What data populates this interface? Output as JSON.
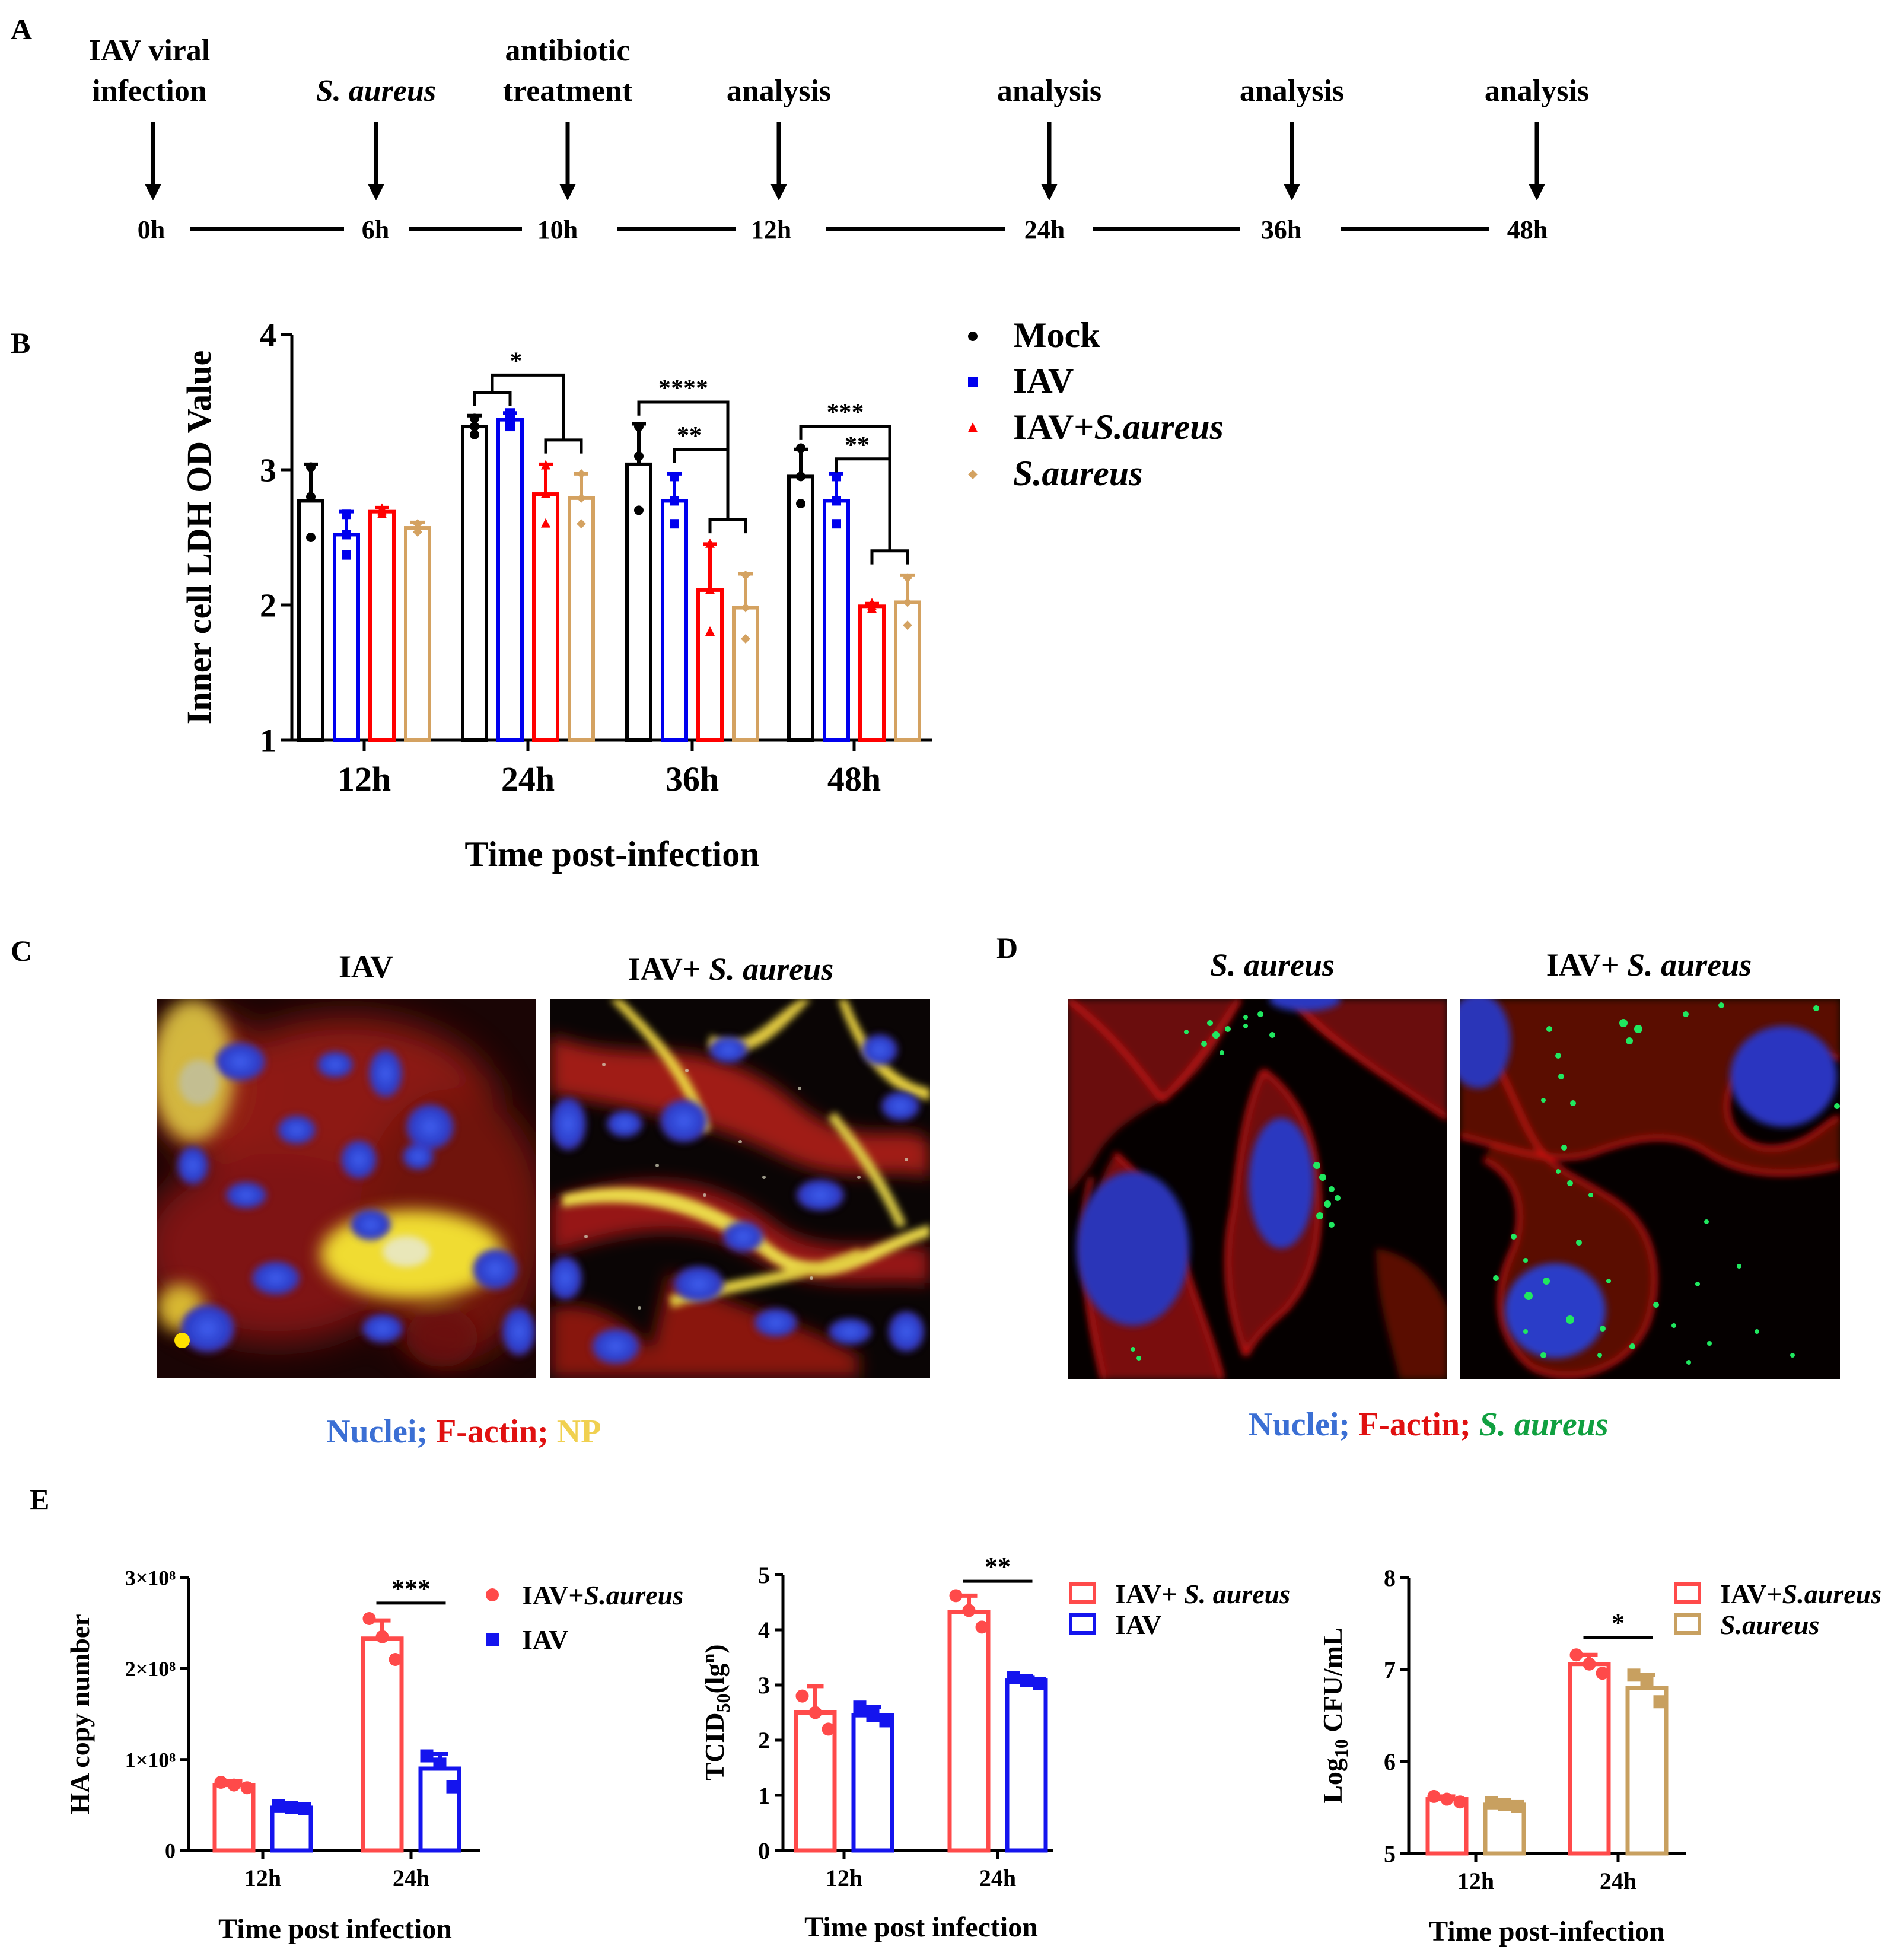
{
  "panels": {
    "A": "A",
    "B": "B",
    "C": "C",
    "D": "D",
    "E": "E"
  },
  "timeline": {
    "events": [
      {
        "line1": "IAV viral",
        "line2": "infection",
        "italic": false,
        "time": "0h"
      },
      {
        "line1": "S. aureus",
        "line2": "",
        "italic": true,
        "time": "6h"
      },
      {
        "line1": "antibiotic",
        "line2": "treatment",
        "italic": false,
        "time": "10h"
      },
      {
        "line1": "analysis",
        "line2": "",
        "italic": false,
        "time": "12h"
      },
      {
        "line1": "analysis",
        "line2": "",
        "italic": false,
        "time": "24h"
      },
      {
        "line1": "analysis",
        "line2": "",
        "italic": false,
        "time": "36h"
      },
      {
        "line1": "analysis",
        "line2": "",
        "italic": false,
        "time": "48h"
      }
    ]
  },
  "chart_data": [
    {
      "id": "B",
      "type": "bar",
      "ylabel": "Inner cell LDH OD Value",
      "xlabel": "Time post-infection",
      "ylim": [
        1,
        4
      ],
      "yticks": [
        "1",
        "2",
        "3",
        "4"
      ],
      "categories": [
        "12h",
        "24h",
        "36h",
        "48h"
      ],
      "series": [
        {
          "name": "Mock",
          "legend_a": "Mock",
          "legend_b": "",
          "color": "#000000",
          "marker": "circle",
          "values": [
            2.77,
            3.32,
            3.04,
            2.95
          ],
          "errors": [
            0.27,
            0.08,
            0.3,
            0.2
          ],
          "points": [
            [
              3.02,
              2.8,
              2.5
            ],
            [
              3.38,
              3.32,
              3.26
            ],
            [
              3.32,
              3.1,
              2.7
            ],
            [
              3.16,
              2.95,
              2.75
            ]
          ]
        },
        {
          "name": "IAV",
          "legend_a": "IAV",
          "legend_b": "",
          "color": "#0000ee",
          "marker": "square",
          "values": [
            2.52,
            3.37,
            2.77,
            2.77
          ],
          "errors": [
            0.17,
            0.05,
            0.2,
            0.2
          ],
          "points": [
            [
              2.67,
              2.52,
              2.37
            ],
            [
              3.42,
              3.37,
              3.32
            ],
            [
              2.95,
              2.77,
              2.6
            ],
            [
              2.95,
              2.77,
              2.6
            ]
          ]
        },
        {
          "name": "IAV+S.aureus",
          "legend_a": "IAV+",
          "legend_b": "S.aureus",
          "color": "#ff0000",
          "marker": "triangle",
          "values": [
            2.69,
            2.82,
            2.11,
            1.99
          ],
          "errors": [
            0.03,
            0.22,
            0.34,
            0.02
          ],
          "points": [
            [
              2.71,
              2.69,
              2.67
            ],
            [
              3.03,
              2.82,
              2.6
            ],
            [
              2.45,
              2.11,
              1.8
            ],
            [
              2.01,
              1.99,
              1.97
            ]
          ]
        },
        {
          "name": "S.aureus",
          "legend_a": "",
          "legend_b": "S.aureus",
          "color": "#d4a261",
          "marker": "diamond",
          "values": [
            2.57,
            2.79,
            1.98,
            2.02
          ],
          "errors": [
            0.04,
            0.18,
            0.25,
            0.2
          ],
          "points": [
            [
              2.6,
              2.57,
              2.54
            ],
            [
              2.97,
              2.79,
              2.6
            ],
            [
              2.22,
              1.98,
              1.75
            ],
            [
              2.2,
              2.02,
              1.85
            ]
          ]
        }
      ],
      "significance": [
        "*",
        "****",
        "**",
        "***",
        "**"
      ]
    },
    {
      "id": "E1",
      "type": "bar",
      "ylabel": "HA copy number",
      "xlabel": "Time post infection",
      "ylim": [
        0,
        3
      ],
      "yticks": [
        "0",
        "1×10⁸",
        "2×10⁸",
        "3×10⁸"
      ],
      "categories": [
        "12h",
        "24h"
      ],
      "series": [
        {
          "name": "IAV+S.aureus",
          "legend_a": "IAV+",
          "legend_b": "S.aureus",
          "color": "#ff4a4a",
          "marker": "circle",
          "values": [
            0.72,
            2.33
          ],
          "errors": [
            0.04,
            0.2
          ],
          "points": [
            [
              0.75,
              0.72,
              0.69
            ],
            [
              2.55,
              2.35,
              2.1
            ]
          ]
        },
        {
          "name": "IAV",
          "legend_a": "IAV",
          "legend_b": "",
          "color": "#1414ee",
          "marker": "square",
          "values": [
            0.47,
            0.9
          ],
          "errors": [
            0.02,
            0.16
          ],
          "points": [
            [
              0.49,
              0.47,
              0.46
            ],
            [
              1.04,
              0.95,
              0.7
            ]
          ]
        }
      ],
      "significance": [
        "***"
      ]
    },
    {
      "id": "E2",
      "type": "bar",
      "ylabel": "TCID50(lg^n)",
      "ylabel_main": "TCID",
      "ylabel_sub": "50",
      "ylabel_paren": "(lg",
      "ylabel_sup": "n",
      "ylabel_close": ")",
      "xlabel": "Time post infection",
      "ylim": [
        0,
        5
      ],
      "yticks": [
        "0",
        "1",
        "2",
        "3",
        "4",
        "5"
      ],
      "categories": [
        "12h",
        "24h"
      ],
      "series": [
        {
          "name": "IAV+ S. aureus",
          "legend_a": "IAV+",
          "legend_b": " S. aureus",
          "color": "#ff4a4a",
          "marker": "circle",
          "values": [
            2.5,
            4.32
          ],
          "errors": [
            0.48,
            0.3
          ],
          "points": [
            [
              2.8,
              2.5,
              2.2
            ],
            [
              4.62,
              4.35,
              4.05
            ]
          ]
        },
        {
          "name": "IAV",
          "legend_a": "IAV",
          "legend_b": "",
          "color": "#1414ee",
          "marker": "square",
          "values": [
            2.45,
            3.08
          ],
          "errors": [
            0.15,
            0.05
          ],
          "points": [
            [
              2.6,
              2.45,
              2.35
            ],
            [
              3.13,
              3.08,
              3.03
            ]
          ]
        }
      ],
      "significance": [
        "**"
      ]
    },
    {
      "id": "E3",
      "type": "bar",
      "ylabel": "Log10 CFU/mL",
      "ylabel_main": "Log",
      "ylabel_sub": "10",
      "ylabel_rest": " CFU/mL",
      "xlabel": "Time post-infection",
      "ylim": [
        5,
        8
      ],
      "yticks": [
        "5",
        "6",
        "7",
        "8"
      ],
      "categories": [
        "12h",
        "24h"
      ],
      "series": [
        {
          "name": "IAV+S.aureus",
          "legend_a": "IAV+",
          "legend_b": "S.aureus",
          "color": "#ff4a4a",
          "marker": "circle",
          "values": [
            5.59,
            7.06
          ],
          "errors": [
            0.03,
            0.1
          ],
          "points": [
            [
              5.62,
              5.59,
              5.56
            ],
            [
              7.16,
              7.06,
              6.96
            ]
          ]
        },
        {
          "name": "S.aureus",
          "legend_a": "",
          "legend_b": "S.aureus",
          "color": "#c8a060",
          "marker": "square",
          "values": [
            5.53,
            6.8
          ],
          "errors": [
            0.02,
            0.14
          ],
          "points": [
            [
              5.55,
              5.53,
              5.51
            ],
            [
              6.94,
              6.85,
              6.65
            ]
          ]
        }
      ],
      "significance": [
        "*"
      ]
    }
  ],
  "microscopy": {
    "C": {
      "title_left": "IAV",
      "title_right_a": "IAV+",
      "title_right_b": " S. aureus",
      "legend_nuclei": "Nuclei;",
      "legend_factin": " F-actin;",
      "legend_np": " NP"
    },
    "D": {
      "title_left": "S. aureus",
      "title_right_a": "IAV+",
      "title_right_b": " S. aureus",
      "legend_nuclei": "Nuclei;",
      "legend_factin": " F-actin;",
      "legend_sa": " S. aureus"
    }
  },
  "colors": {
    "nuclei": "#3b6fd4",
    "factin": "#e01010",
    "np": "#f0d050",
    "sa": "#10a040"
  }
}
